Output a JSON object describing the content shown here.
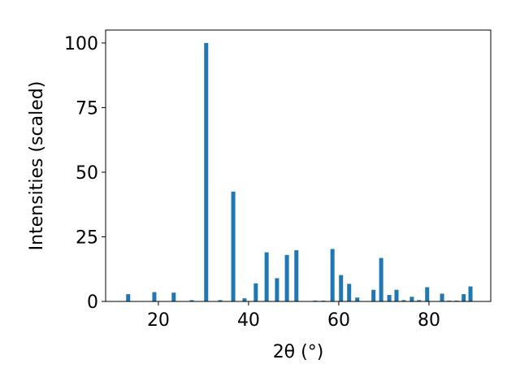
{
  "chart_data": {
    "type": "bar",
    "x_label": "2θ (°)",
    "y_label": "Intensities (scaled)",
    "x": [
      13.3,
      19.1,
      23.4,
      27.4,
      30.6,
      33.7,
      36.6,
      39.1,
      41.6,
      44.0,
      46.3,
      48.5,
      50.6,
      54.8,
      56.6,
      58.6,
      60.5,
      62.3,
      64.1,
      67.7,
      69.4,
      71.2,
      72.8,
      74.4,
      76.2,
      77.8,
      79.6,
      82.9,
      84.5,
      86.1,
      87.7,
      89.2
    ],
    "values": [
      2.8,
      3.6,
      3.4,
      0.5,
      100,
      0.5,
      42.5,
      1.2,
      7,
      19,
      9,
      18,
      19.8,
      0.3,
      0.3,
      20.3,
      10.2,
      6.8,
      1.5,
      4.5,
      16.8,
      2.5,
      4.5,
      0.5,
      1.8,
      0.5,
      5.5,
      3,
      0.3,
      0.3,
      2.8,
      5.8
    ],
    "color": "#1f77b4",
    "xlim": [
      8.3,
      93.7
    ],
    "xticks": [
      20,
      40,
      60,
      80
    ],
    "ylim": [
      0,
      105
    ],
    "yticks": [
      0,
      25,
      50,
      75,
      100
    ]
  }
}
